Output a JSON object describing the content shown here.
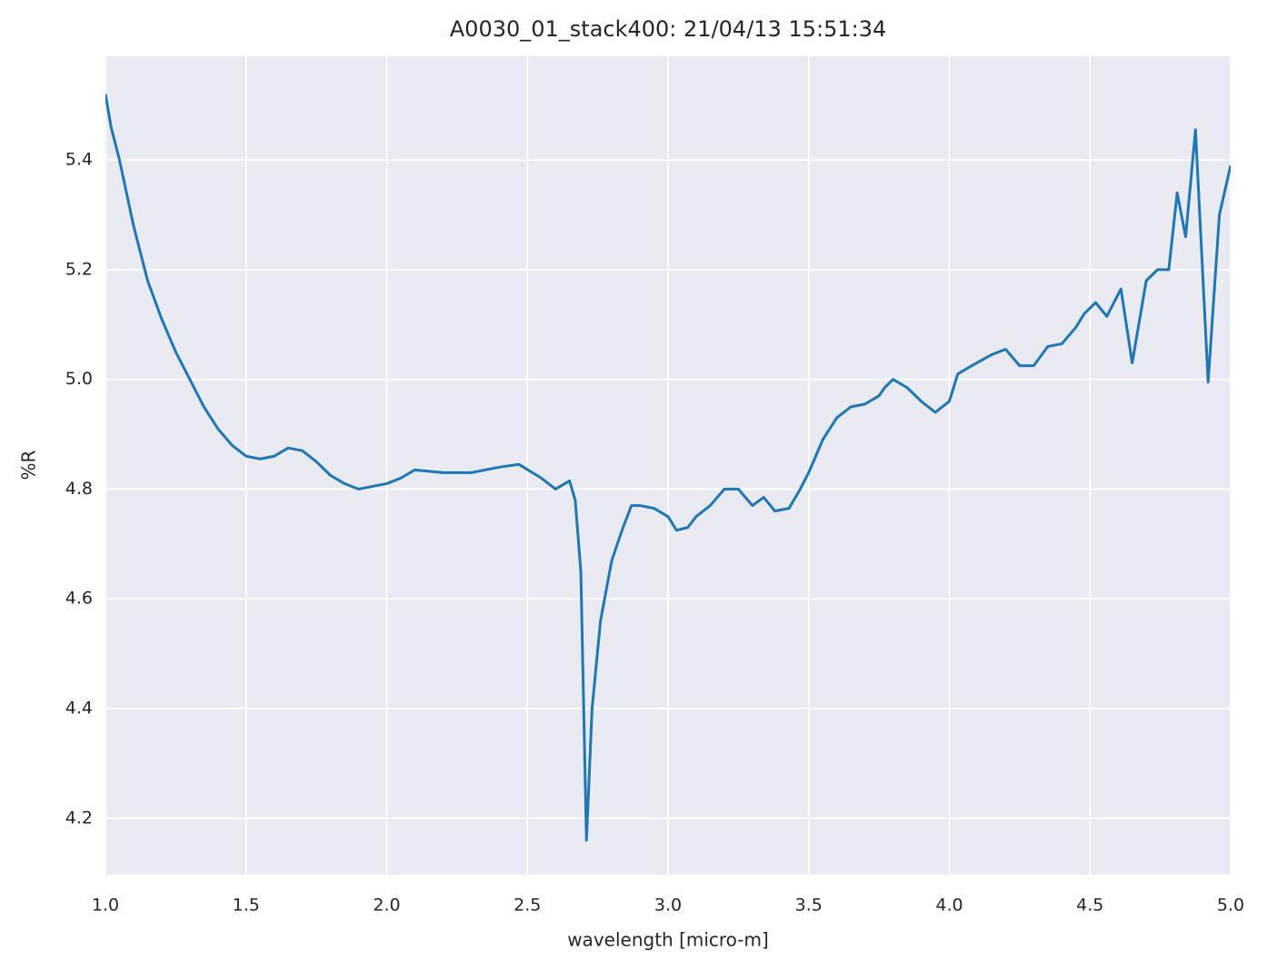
{
  "chart_data": {
    "type": "line",
    "title": "A0030_01_stack400:  21/04/13 15:51:34",
    "xlabel": "wavelength [micro-m]",
    "ylabel": "%R",
    "color": "#1f77b4",
    "grid": true,
    "xlim": [
      1,
      5
    ],
    "ylim": [
      4.097,
      5.589
    ],
    "xticks": [
      {
        "value": 1,
        "label": "1.0"
      },
      1.5,
      {
        "value": 2,
        "label": "2.0"
      },
      2.5,
      {
        "value": 3,
        "label": "3.0"
      },
      3.5,
      {
        "value": 4,
        "label": "4.0"
      },
      4.5,
      {
        "value": 5,
        "label": "5.0"
      }
    ],
    "yticks": [
      4.2,
      4.4,
      4.6,
      4.8,
      {
        "value": 5,
        "label": "5.0"
      },
      5.2,
      5.4
    ],
    "x": [
      1.0,
      1.02,
      1.05,
      1.1,
      1.15,
      1.2,
      1.25,
      1.3,
      1.35,
      1.4,
      1.45,
      1.5,
      1.55,
      1.6,
      1.65,
      1.7,
      1.75,
      1.8,
      1.85,
      1.9,
      1.95,
      2.0,
      2.05,
      2.1,
      2.2,
      2.3,
      2.4,
      2.47,
      2.55,
      2.6,
      2.65,
      2.67,
      2.69,
      2.71,
      2.73,
      2.76,
      2.8,
      2.84,
      2.87,
      2.9,
      2.95,
      3.0,
      3.03,
      3.07,
      3.1,
      3.15,
      3.2,
      3.25,
      3.3,
      3.34,
      3.38,
      3.43,
      3.47,
      3.5,
      3.55,
      3.6,
      3.65,
      3.7,
      3.75,
      3.77,
      3.8,
      3.85,
      3.9,
      3.95,
      4.0,
      4.03,
      4.08,
      4.15,
      4.2,
      4.25,
      4.3,
      4.35,
      4.4,
      4.45,
      4.48,
      4.52,
      4.56,
      4.61,
      4.65,
      4.7,
      4.74,
      4.78,
      4.81,
      4.84,
      4.875,
      4.92,
      4.96,
      5.0
    ],
    "values": [
      5.52,
      5.46,
      5.4,
      5.28,
      5.18,
      5.11,
      5.05,
      5.0,
      4.95,
      4.91,
      4.88,
      4.86,
      4.855,
      4.86,
      4.875,
      4.87,
      4.85,
      4.825,
      4.81,
      4.8,
      4.805,
      4.81,
      4.82,
      4.835,
      4.83,
      4.83,
      4.84,
      4.845,
      4.82,
      4.8,
      4.815,
      4.78,
      4.65,
      4.16,
      4.4,
      4.56,
      4.67,
      4.73,
      4.77,
      4.77,
      4.765,
      4.75,
      4.725,
      4.73,
      4.75,
      4.77,
      4.8,
      4.8,
      4.77,
      4.785,
      4.76,
      4.765,
      4.8,
      4.83,
      4.89,
      4.93,
      4.95,
      4.955,
      4.97,
      4.985,
      5.0,
      4.985,
      4.96,
      4.94,
      4.96,
      5.01,
      5.025,
      5.045,
      5.055,
      5.025,
      5.025,
      5.06,
      5.065,
      5.095,
      5.12,
      5.14,
      5.115,
      5.165,
      5.03,
      5.18,
      5.2,
      5.2,
      5.34,
      5.26,
      5.455,
      4.995,
      5.3,
      5.39
    ]
  }
}
